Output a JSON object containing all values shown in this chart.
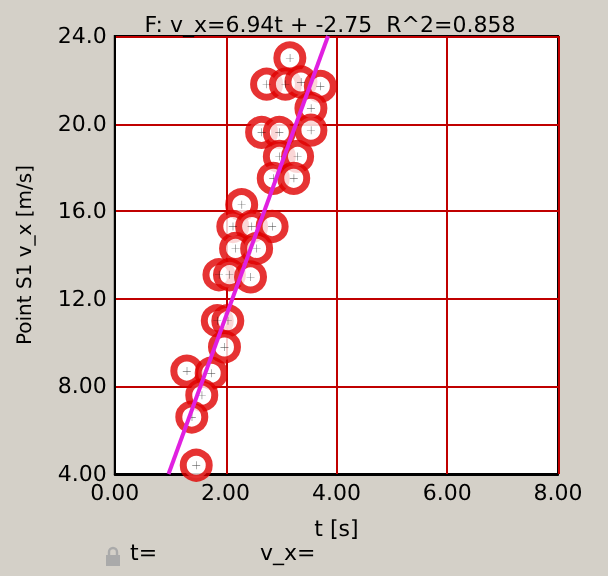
{
  "chart_data": {
    "type": "scatter",
    "title": "F: v_x=6.94t + -2.75  R^2=0.858",
    "xlabel": "t [s]",
    "ylabel": "Point S1 v_x [m/s]",
    "annotations": [
      "t=",
      "v_x="
    ],
    "xlim": [
      0,
      8
    ],
    "xticks": [
      {
        "value": 0,
        "label": "0.00"
      },
      {
        "value": 2,
        "label": "2.00"
      },
      {
        "value": 4,
        "label": "4.00"
      },
      {
        "value": 6,
        "label": "6.00"
      },
      {
        "value": 8,
        "label": "8.00"
      }
    ],
    "ylim": [
      4,
      24
    ],
    "yticks": [
      {
        "value": 4,
        "label": "4.00"
      },
      {
        "value": 8,
        "label": "8.00"
      },
      {
        "value": 12,
        "label": "12.0"
      },
      {
        "value": 16,
        "label": "16.0"
      },
      {
        "value": 20,
        "label": "20.0"
      },
      {
        "value": 24,
        "label": "24.0"
      }
    ],
    "grid": true,
    "marker": "circle",
    "series": [
      {
        "color": "#e00000",
        "x": [
          3.16,
          2.74,
          3.08,
          3.36,
          3.71,
          3.54,
          2.65,
          2.97,
          3.54,
          2.97,
          3.3,
          2.86,
          3.23,
          2.29,
          2.13,
          2.47,
          2.84,
          2.18,
          2.56,
          1.88,
          2.07,
          2.45,
          1.85,
          2.04,
          1.98,
          1.3,
          1.74,
          1.57,
          1.39,
          1.47
        ],
        "values": [
          23.0,
          21.8,
          21.8,
          21.9,
          21.7,
          20.7,
          19.6,
          19.6,
          19.7,
          18.5,
          18.5,
          17.5,
          17.5,
          16.3,
          15.3,
          15.3,
          15.3,
          14.3,
          14.3,
          13.1,
          13.1,
          13.0,
          11.0,
          11.0,
          9.8,
          8.7,
          8.6,
          7.6,
          6.6,
          4.4
        ]
      },
      {
        "type": "line",
        "color": "#e020e0",
        "marker": "none",
        "x": [
          0.97,
          3.85
        ],
        "values": [
          4,
          24
        ]
      }
    ]
  }
}
